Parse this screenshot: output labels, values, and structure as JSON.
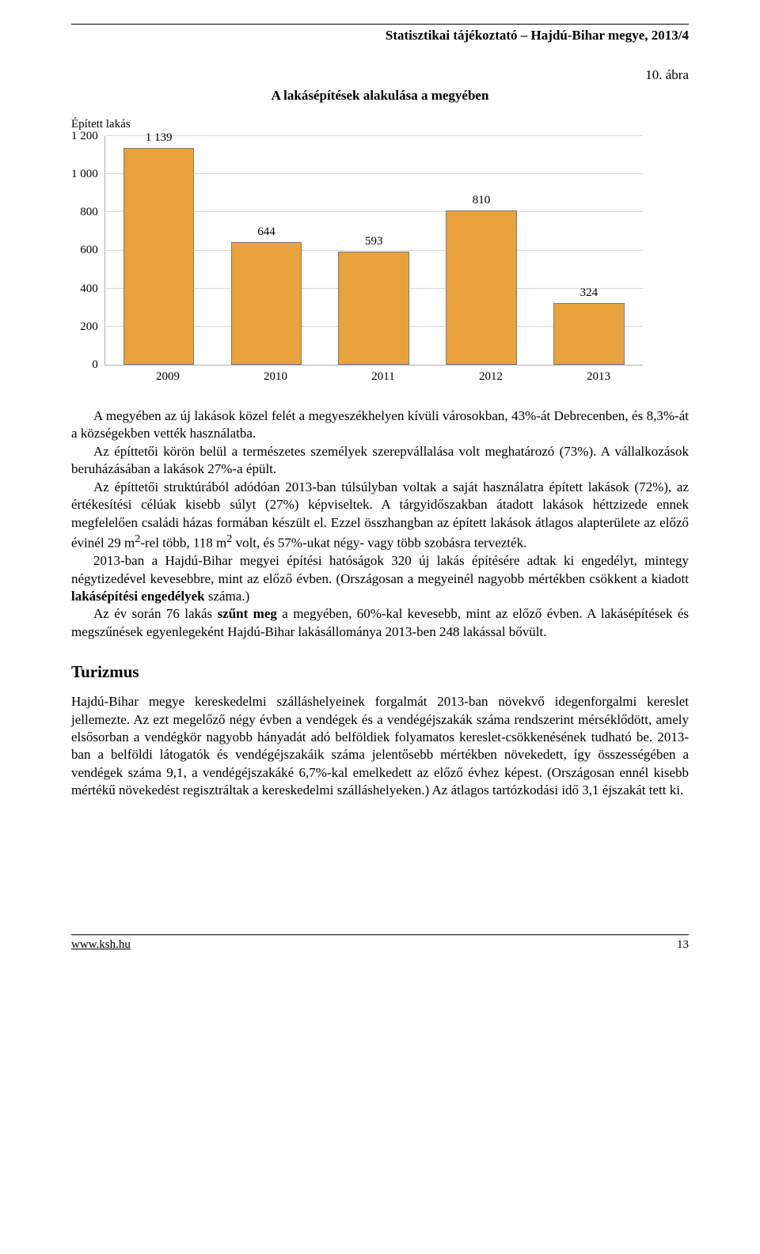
{
  "header": {
    "title": "Statisztikai tájékoztató – Hajdú-Bihar megye, 2013/4"
  },
  "figure": {
    "label": "10. ábra",
    "title": "A lakásépítések alakulása a megyében",
    "ylabel": "Épített lakás",
    "chart": {
      "type": "bar",
      "categories": [
        "2009",
        "2010",
        "2011",
        "2012",
        "2013"
      ],
      "values": [
        1139,
        644,
        593,
        810,
        324
      ],
      "value_labels": [
        "1 139",
        "644",
        "593",
        "810",
        "324"
      ],
      "bar_color": "#e8a33d",
      "border_color": "#7a7a7a",
      "ylim": [
        0,
        1200
      ],
      "ytick_step": 200,
      "yticks": [
        "1 200",
        "1 000",
        "800",
        "600",
        "400",
        "200",
        "0"
      ],
      "grid_color": "#d8d8d8",
      "background_color": "#ffffff",
      "bar_width": 0.66,
      "label_fontsize": 15,
      "title_fontsize": 17
    }
  },
  "body": {
    "p1": "A megyében az új lakások közel felét a megyeszékhelyen kívüli városokban, 43%-át Debrecenben, és 8,3%-át a községekben vették használatba.",
    "p2": "Az építtetői körön belül a természetes személyek szerepvállalása volt meghatározó (73%). A vállalkozások beruházásában a lakások 27%-a épült.",
    "p3_a": "Az építtetői struktúrából adódóan 2013-ban túlsúlyban voltak a saját használatra épített lakások (72%), az értékesítési célúak kisebb súlyt (27%) képviseltek. A tárgyidőszakban átadott lakások héttzizede ennek megfelelően családi házas formában készült el. Ezzel összhangban az épített lakások átlagos alapterülete az előző évinél 29 m",
    "p3_b": "-rel több, 118 m",
    "p3_c": " volt, és 57%-ukat négy- vagy több szobásra tervezték.",
    "p4_a": "2013-ban a Hajdú-Bihar megyei építési hatóságok 320 új lakás építésére adtak ki engedélyt, mintegy négytizedével kevesebbre, mint az előző évben. (Országosan a megyeinél nagyobb mértékben csökkent a kiadott ",
    "p4_bold": "lakásépítési engedélyek",
    "p4_b": " száma.)",
    "p5_a": "Az év során 76 lakás ",
    "p5_bold": "szűnt meg",
    "p5_b": " a megyében, 60%-kal kevesebb, mint az előző évben. A lakásépítések és megszűnések egyenlegeként Hajdú-Bihar lakásállománya 2013-ben 248 lakással bővült.",
    "section_heading": "Turizmus",
    "p6": "Hajdú-Bihar megye kereskedelmi szálláshelyeinek forgalmát 2013-ban növekvő idegenforgalmi kereslet jellemezte. Az ezt megelőző négy évben a vendégek és a vendégéjszakák száma rendszerint mérséklődött, amely elsősorban a vendégkör nagyobb hányadát adó belföldiek folyamatos kereslet-csökkenésének tudható be. 2013-ban a belföldi látogatók és vendégéjszakáik száma jelentősebb mértékben növekedett, így összességében a vendégek száma 9,1, a vendég­éjszakáké 6,7%-kal emelkedett az előző évhez képest. (Országosan ennél kisebb mértékű növekedést regisztráltak a kereskedelmi szálláshelyeken.) Az átlagos tartózkodási idő 3,1 éjszakát tett ki."
  },
  "footer": {
    "url": "www.ksh.hu",
    "page": "13"
  }
}
